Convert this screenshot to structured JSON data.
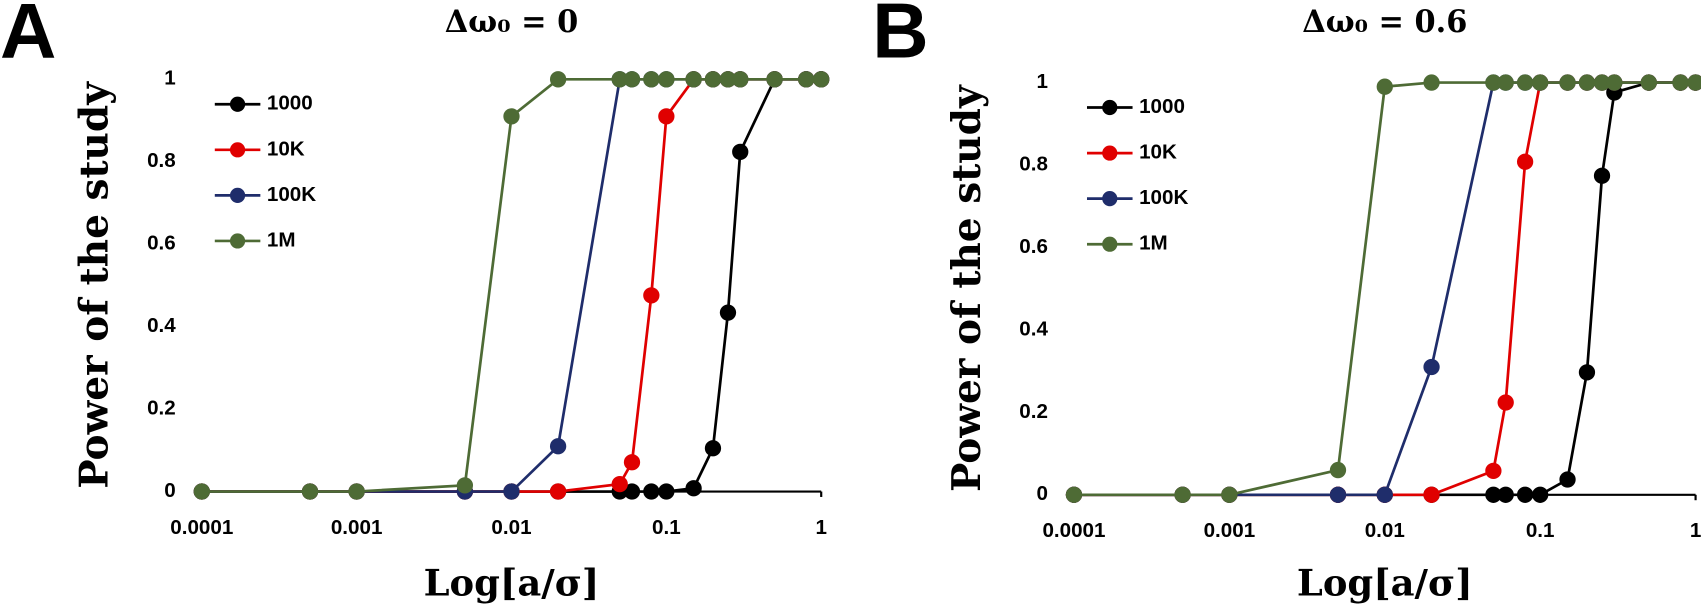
{
  "chart_data": [
    {
      "type": "line",
      "panel_label": "A",
      "title": "Δω₀ = 0",
      "xlabel": "Log[a/σ]",
      "ylabel": "Power of the study",
      "x": [
        0.0001,
        0.0005,
        0.001,
        0.005,
        0.01,
        0.02,
        0.05,
        0.06,
        0.08,
        0.1,
        0.15,
        0.2,
        0.25,
        0.3,
        0.5,
        0.8,
        1
      ],
      "series": [
        {
          "name": "1000",
          "color": "#000000",
          "values": [
            0,
            0,
            0,
            0,
            0,
            0,
            0,
            0,
            0,
            0,
            0.008,
            0.105,
            0.434,
            0.824,
            1,
            1,
            1
          ]
        },
        {
          "name": "10K",
          "color": "#e00000",
          "values": [
            0,
            0,
            0,
            0,
            0,
            0,
            0.018,
            0.071,
            0.476,
            0.91,
            1,
            1,
            1,
            1,
            1,
            1,
            1
          ]
        },
        {
          "name": "100K",
          "color": "#1f2d6b",
          "values": [
            0,
            0,
            0,
            0,
            0,
            0.11,
            1,
            1,
            1,
            1,
            1,
            1,
            1,
            1,
            1,
            1,
            1
          ]
        },
        {
          "name": "1M",
          "color": "#4e6b35",
          "values": [
            0,
            0,
            0,
            0.015,
            0.91,
            1,
            1,
            1,
            1,
            1,
            1,
            1,
            1,
            1,
            1,
            1,
            1
          ]
        }
      ],
      "xlim": [
        0.0001,
        1
      ],
      "xticks": [
        0.0001,
        0.001,
        0.01,
        0.1,
        1
      ],
      "log_x": true,
      "ylim": [
        0,
        1
      ],
      "yticks": [
        0,
        0.2,
        0.4,
        0.6,
        0.8,
        1
      ],
      "grid": false,
      "legend": "upper left"
    },
    {
      "type": "line",
      "panel_label": "B",
      "title": "Δω₀ = 0.6",
      "xlabel": "Log[a/σ]",
      "ylabel": "Power of the study",
      "x": [
        0.0001,
        0.0005,
        0.001,
        0.005,
        0.01,
        0.02,
        0.05,
        0.06,
        0.08,
        0.1,
        0.15,
        0.2,
        0.25,
        0.3,
        0.5,
        0.8,
        1
      ],
      "series": [
        {
          "name": "1000",
          "color": "#000000",
          "values": [
            0,
            0,
            0,
            0,
            0,
            0,
            0,
            0,
            0,
            0,
            0.037,
            0.297,
            0.774,
            0.976,
            1,
            1,
            1
          ]
        },
        {
          "name": "10K",
          "color": "#e00000",
          "values": [
            0,
            0,
            0,
            0,
            0,
            0,
            0.058,
            0.224,
            0.808,
            1,
            1,
            1,
            1,
            1,
            1,
            1,
            1
          ]
        },
        {
          "name": "100K",
          "color": "#1f2d6b",
          "values": [
            0,
            0,
            0,
            0,
            0,
            0.31,
            1,
            1,
            1,
            1,
            1,
            1,
            1,
            1,
            1,
            1,
            1
          ]
        },
        {
          "name": "1M",
          "color": "#4e6b35",
          "values": [
            0,
            0,
            0,
            0.06,
            0.99,
            1,
            1,
            1,
            1,
            1,
            1,
            1,
            1,
            1,
            1,
            1,
            1
          ]
        }
      ],
      "xlim": [
        0.0001,
        1
      ],
      "xticks": [
        0.0001,
        0.001,
        0.01,
        0.1,
        1
      ],
      "log_x": true,
      "ylim": [
        0,
        1
      ],
      "yticks": [
        0,
        0.2,
        0.4,
        0.6,
        0.8,
        1
      ],
      "grid": false,
      "legend": "upper left"
    }
  ]
}
